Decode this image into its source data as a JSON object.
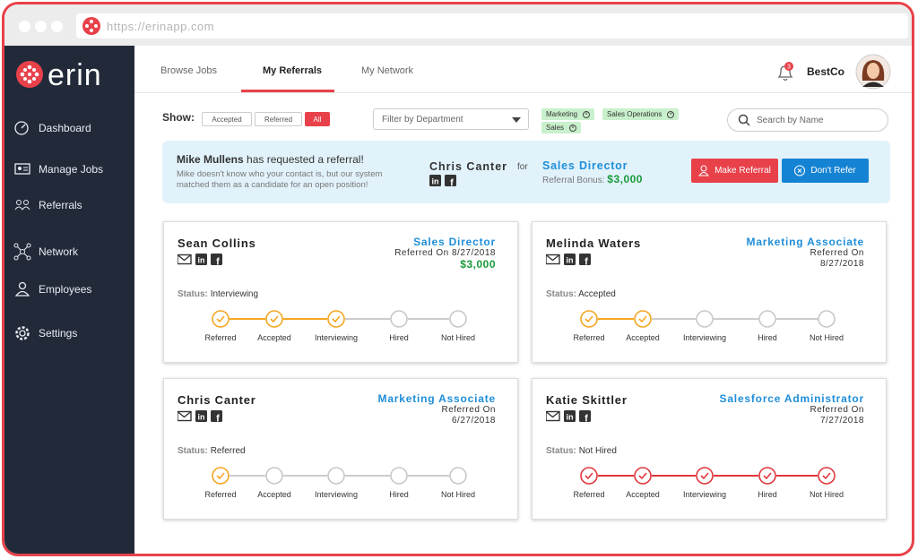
{
  "browser": {
    "url": "https://erinapp.com"
  },
  "sidebar": {
    "logo": "erin",
    "items": [
      "Dashboard",
      "Manage Jobs",
      "Referrals",
      "Network",
      "Employees",
      "Settings"
    ]
  },
  "tabs": {
    "items": [
      "Browse Jobs",
      "My Referrals",
      "My Network"
    ],
    "active": 1
  },
  "user": {
    "notifications": "3",
    "company": "BestCo"
  },
  "filters": {
    "show_label": "Show:",
    "show_options": [
      "Accepted",
      "Referred",
      "All"
    ],
    "active_option": 2,
    "department_placeholder": "Filter by Department",
    "tags": [
      "Marketing",
      "Sales Operations",
      "Sales"
    ],
    "search_placeholder": "Search by Name"
  },
  "request": {
    "requester": "Mike Mullens",
    "message": "has requested a referral!",
    "detail": "Mike doesn't know who your contact is, but our system matched them as a candidate for an open position!",
    "candidate": "Chris Canter",
    "for": "for",
    "job": "Sales Director",
    "bonus_label": "Referral Bonus:",
    "bonus": "$3,000",
    "actions": [
      "Make Referral",
      "Don't Refer"
    ]
  },
  "status_label": "Status:",
  "referred_on_label": "Referred On",
  "status_steps": [
    "Referred",
    "Accepted",
    "Interviewing",
    "Hired",
    "Not Hired"
  ],
  "referrals": [
    {
      "name": "Sean Collins",
      "job": "Sales Director",
      "date": "8/27/2018",
      "bonus": "$3,000",
      "status": "Interviewing",
      "progress": 3,
      "declined": false
    },
    {
      "name": "Melinda Waters",
      "job": "Marketing Associate",
      "date": "8/27/2018",
      "status": "Accepted",
      "progress": 2,
      "declined": false
    },
    {
      "name": "Chris Canter",
      "job": "Marketing Associate",
      "date": "6/27/2018",
      "status": "Referred",
      "progress": 1,
      "declined": false
    },
    {
      "name": "Katie Skittler",
      "job": "Salesforce Administrator",
      "date": "7/27/2018",
      "status": "Not Hired",
      "progress": 5,
      "declined": true
    }
  ]
}
